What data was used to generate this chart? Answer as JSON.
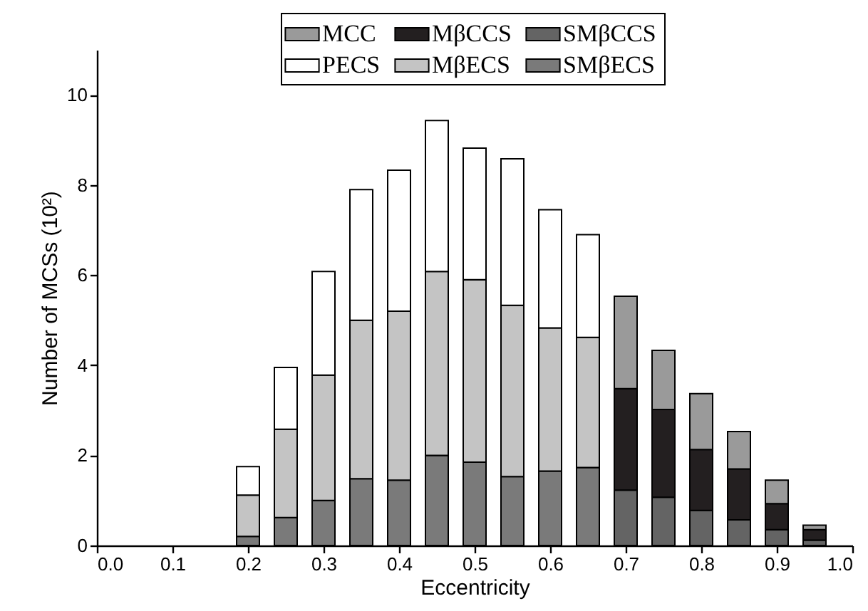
{
  "chart_data": {
    "type": "bar",
    "stacked": true,
    "xlabel": "Eccentricity",
    "ylabel": "Number of MCSs (10²)",
    "x": [
      0.2,
      0.25,
      0.3,
      0.35,
      0.4,
      0.45,
      0.5,
      0.55,
      0.6,
      0.65,
      0.7,
      0.75,
      0.8,
      0.85,
      0.9,
      0.95
    ],
    "series": [
      {
        "name": "SMβECS",
        "color": "#7a7a7a",
        "values": [
          0.2,
          0.62,
          1.0,
          1.48,
          1.45,
          2.0,
          1.85,
          1.53,
          1.65,
          1.73,
          null,
          null,
          null,
          null,
          null,
          null
        ]
      },
      {
        "name": "MβECS",
        "color": "#c4c4c4",
        "values": [
          0.92,
          1.96,
          2.78,
          3.52,
          3.75,
          4.08,
          4.05,
          3.8,
          3.18,
          2.89,
          null,
          null,
          null,
          null,
          null,
          null
        ]
      },
      {
        "name": "PECS",
        "color": "#ffffff",
        "values": [
          0.63,
          1.37,
          2.3,
          2.9,
          3.13,
          3.35,
          2.92,
          3.25,
          2.62,
          2.28,
          null,
          null,
          null,
          null,
          null,
          null
        ]
      },
      {
        "name": "SMβCCS",
        "color": "#646464",
        "values": [
          null,
          null,
          null,
          null,
          null,
          null,
          null,
          null,
          null,
          null,
          1.23,
          1.07,
          0.78,
          0.57,
          0.35,
          0.12
        ]
      },
      {
        "name": "MβCCS",
        "color": "#231f20",
        "values": [
          null,
          null,
          null,
          null,
          null,
          null,
          null,
          null,
          null,
          null,
          2.25,
          1.95,
          1.35,
          1.13,
          0.58,
          0.23
        ]
      },
      {
        "name": "MCC",
        "color": "#9a9a9a",
        "values": [
          null,
          null,
          null,
          null,
          null,
          null,
          null,
          null,
          null,
          null,
          2.05,
          1.31,
          1.24,
          0.83,
          0.52,
          0.1
        ]
      }
    ],
    "xlim": [
      0,
      1
    ],
    "xticks": [
      {
        "value": 0,
        "label": "0.0"
      },
      {
        "value": 0.1,
        "label": "0.1"
      },
      {
        "value": 0.2,
        "label": "0.2"
      },
      {
        "value": 0.3,
        "label": "0.3"
      },
      {
        "value": 0.4,
        "label": "0.4"
      },
      {
        "value": 0.5,
        "label": "0.5"
      },
      {
        "value": 0.6,
        "label": "0.6"
      },
      {
        "value": 0.7,
        "label": "0.7"
      },
      {
        "value": 0.8,
        "label": "0.8"
      },
      {
        "value": 0.9,
        "label": "0.9"
      },
      {
        "value": 1,
        "label": "1.0"
      }
    ],
    "ylim": [
      0,
      11
    ],
    "yticks": [
      0,
      2,
      4,
      6,
      8,
      10
    ],
    "legend": "top right",
    "grid": false
  }
}
